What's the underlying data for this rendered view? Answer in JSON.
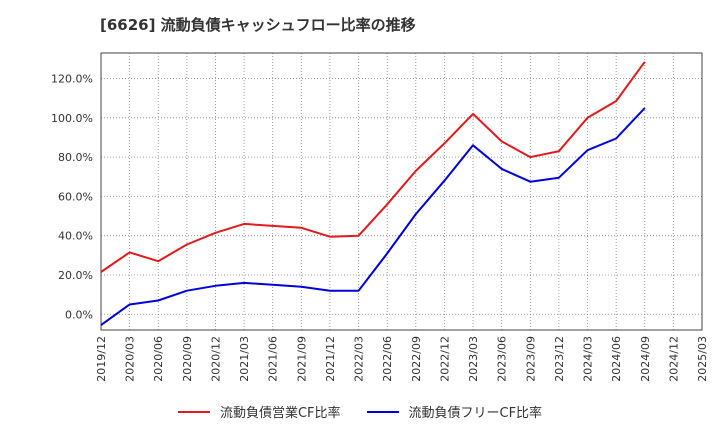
{
  "chart_data": {
    "type": "line",
    "title": "[6626]  流動負債キャッシュフロー比率の推移",
    "x": [
      "2019/12",
      "2020/03",
      "2020/06",
      "2020/09",
      "2020/12",
      "2021/03",
      "2021/06",
      "2021/09",
      "2021/12",
      "2022/03",
      "2022/06",
      "2022/09",
      "2022/12",
      "2023/03",
      "2023/06",
      "2023/09",
      "2023/12",
      "2024/03",
      "2024/06",
      "2024/09",
      "2024/12",
      "2025/03"
    ],
    "series": [
      {
        "name": "流動負債営業CF比率",
        "color": "#e31a1c",
        "values": [
          21.5,
          31.5,
          27.0,
          35.5,
          41.5,
          46.0,
          45.0,
          44.0,
          39.5,
          40.0,
          56.0,
          73.0,
          87.0,
          102.0,
          88.0,
          80.0,
          83.0,
          100.0,
          108.5,
          128.5,
          null,
          null
        ]
      },
      {
        "name": "流動負債フリーCF比率",
        "color": "#0000dd",
        "values": [
          -5.5,
          5.0,
          7.0,
          12.0,
          14.5,
          16.0,
          15.0,
          14.0,
          12.0,
          12.0,
          31.0,
          51.0,
          68.0,
          86.0,
          74.0,
          67.5,
          69.5,
          83.5,
          89.5,
          105.0,
          null,
          null
        ]
      }
    ],
    "yticks": [
      "0.0%",
      "20.0%",
      "40.0%",
      "60.0%",
      "80.0%",
      "100.0%",
      "120.0%"
    ],
    "ytick_values": [
      0,
      20,
      40,
      60,
      80,
      100,
      120
    ],
    "ylim": [
      -8,
      133
    ],
    "xlabel": "",
    "ylabel": "",
    "grid": true,
    "legend_position": "bottom"
  }
}
